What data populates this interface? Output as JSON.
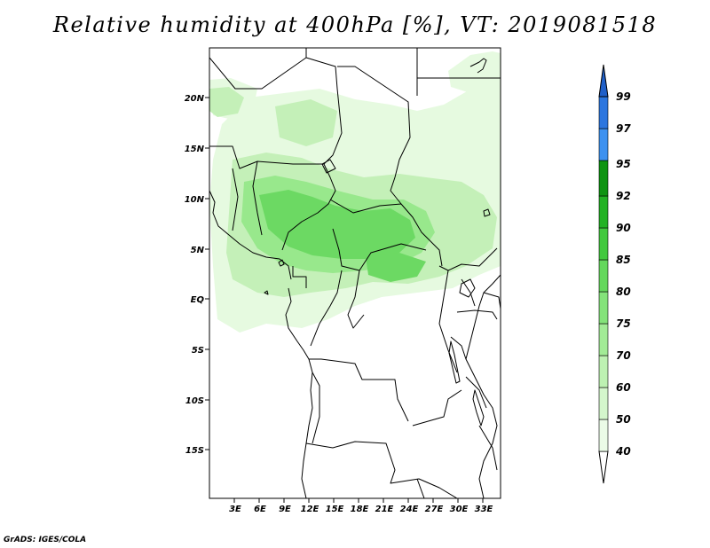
{
  "title": "Relative humidity at 400hPa [%], VT: 2019081518",
  "credit": "GrADS: IGES/COLA",
  "map": {
    "lon_ticks": [
      "3E",
      "6E",
      "9E",
      "12E",
      "15E",
      "18E",
      "21E",
      "24E",
      "27E",
      "30E",
      "33E"
    ],
    "lat_ticks": [
      "20N",
      "15N",
      "10N",
      "5N",
      "EQ",
      "5S",
      "10S",
      "15S"
    ],
    "lon_range": [
      0,
      34.5
    ],
    "lat_range": [
      -20,
      24.5
    ]
  },
  "colorbar": {
    "labels": [
      "40",
      "50",
      "60",
      "70",
      "75",
      "80",
      "85",
      "90",
      "92",
      "95",
      "97",
      "99"
    ],
    "colors": [
      "#ffffff",
      "#ebfbe7",
      "#d4f6cc",
      "#bdf1b2",
      "#a2eb96",
      "#84e37a",
      "#64d85c",
      "#42c93e",
      "#23b224",
      "#0f9412",
      "#3d91f0",
      "#2c76df",
      "#2060c9",
      "#1a4fb0"
    ]
  }
}
